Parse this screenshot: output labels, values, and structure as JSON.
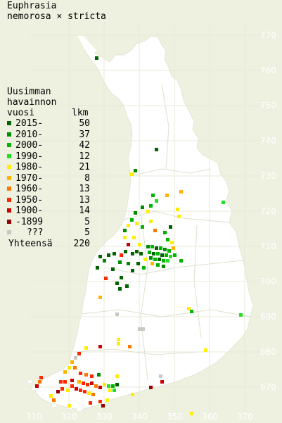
{
  "title": {
    "line1": "Euphrasia",
    "line2": "nemorosa × stricta"
  },
  "legend": {
    "heading_line1": "Uusimman",
    "heading_line2": "havainnon",
    "heading_line3": "vuosi",
    "count_heading": "lkm",
    "rows": [
      {
        "label": "2015-",
        "count": "50",
        "color": "#006400"
      },
      {
        "label": "2010-",
        "count": "37",
        "color": "#008c00"
      },
      {
        "label": "2000-",
        "count": "42",
        "color": "#00b400"
      },
      {
        "label": "1990-",
        "count": "12",
        "color": "#22e022"
      },
      {
        "label": "1980-",
        "count": "21",
        "color": "#ffee00"
      },
      {
        "label": "1970-",
        "count": "8",
        "color": "#ffb400"
      },
      {
        "label": "1960-",
        "count": "13",
        "color": "#ff7800"
      },
      {
        "label": "1950-",
        "count": "13",
        "color": "#ff2800"
      },
      {
        "label": "1900-",
        "count": "14",
        "color": "#cc0000"
      },
      {
        "label": "-1899",
        "count": "5",
        "color": "#960000"
      },
      {
        "label": "???",
        "count": "5",
        "color": "#c8c8c8"
      }
    ],
    "total_label": "Yhteensä",
    "total_count": "220"
  },
  "axes": {
    "x_labels": [
      "310",
      "320",
      "330",
      "340",
      "350",
      "360",
      "370"
    ],
    "y_labels": [
      "770",
      "760",
      "750",
      "740",
      "730",
      "720",
      "710",
      "700",
      "690",
      "680",
      "670"
    ]
  },
  "colors": {
    "background": "#eef0e0",
    "land": "#ffffff",
    "grid": "#d8dcc0",
    "border": "#c8ccb0"
  }
}
